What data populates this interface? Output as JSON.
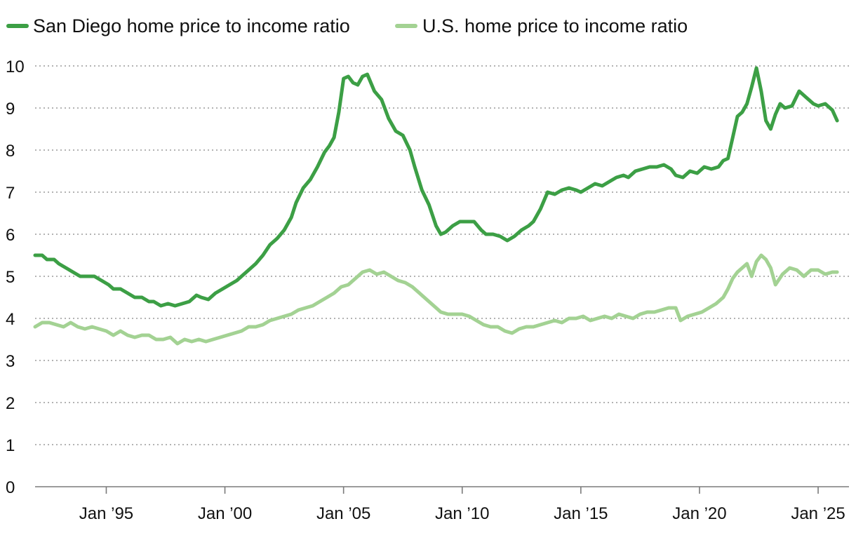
{
  "chart_data": {
    "type": "line",
    "title": "",
    "xlabel": "",
    "ylabel": "",
    "ylim": [
      0,
      10
    ],
    "xlim": [
      1992.0,
      2026.3
    ],
    "grid": true,
    "legend_position": "top-left",
    "y_ticks": [
      {
        "value": 0,
        "label": "0"
      },
      {
        "value": 1,
        "label": "1"
      },
      {
        "value": 2,
        "label": "2"
      },
      {
        "value": 3,
        "label": "3"
      },
      {
        "value": 4,
        "label": "4"
      },
      {
        "value": 5,
        "label": "5"
      },
      {
        "value": 6,
        "label": "6"
      },
      {
        "value": 7,
        "label": "7"
      },
      {
        "value": 8,
        "label": "8"
      },
      {
        "value": 9,
        "label": "9"
      },
      {
        "value": 10,
        "label": "10"
      }
    ],
    "x_ticks": [
      {
        "value": 1995,
        "label": "Jan ’95"
      },
      {
        "value": 2000,
        "label": "Jan ’00"
      },
      {
        "value": 2005,
        "label": "Jan ’05"
      },
      {
        "value": 2010,
        "label": "Jan ’10"
      },
      {
        "value": 2015,
        "label": "Jan ’15"
      },
      {
        "value": 2020,
        "label": "Jan ’20"
      },
      {
        "value": 2025,
        "label": "Jan ’25"
      }
    ],
    "series": [
      {
        "name": "San Diego home price to income ratio",
        "color": "#3c9f45",
        "x": [
          1992.0,
          1992.3,
          1992.5,
          1992.8,
          1993.0,
          1993.3,
          1993.6,
          1993.9,
          1994.2,
          1994.5,
          1994.8,
          1995.1,
          1995.3,
          1995.6,
          1995.9,
          1996.2,
          1996.5,
          1996.8,
          1997.0,
          1997.3,
          1997.6,
          1997.9,
          1998.2,
          1998.5,
          1998.8,
          1999.0,
          1999.3,
          1999.6,
          1999.9,
          2000.2,
          2000.5,
          2000.8,
          2001.0,
          2001.3,
          2001.6,
          2001.9,
          2002.2,
          2002.5,
          2002.8,
          2003.0,
          2003.3,
          2003.6,
          2003.9,
          2004.2,
          2004.4,
          2004.6,
          2004.8,
          2005.0,
          2005.2,
          2005.4,
          2005.6,
          2005.8,
          2006.0,
          2006.3,
          2006.6,
          2006.9,
          2007.2,
          2007.5,
          2007.8,
          2008.0,
          2008.3,
          2008.6,
          2008.9,
          2009.1,
          2009.3,
          2009.6,
          2009.9,
          2010.2,
          2010.5,
          2010.8,
          2011.0,
          2011.3,
          2011.6,
          2011.9,
          2012.2,
          2012.5,
          2012.8,
          2013.0,
          2013.3,
          2013.6,
          2013.9,
          2014.2,
          2014.5,
          2014.8,
          2015.0,
          2015.3,
          2015.6,
          2015.9,
          2016.2,
          2016.5,
          2016.8,
          2017.0,
          2017.3,
          2017.6,
          2017.9,
          2018.2,
          2018.5,
          2018.8,
          2019.0,
          2019.3,
          2019.6,
          2019.9,
          2020.2,
          2020.5,
          2020.8,
          2021.0,
          2021.2,
          2021.4,
          2021.6,
          2021.8,
          2022.0,
          2022.2,
          2022.4,
          2022.6,
          2022.8,
          2023.0,
          2023.2,
          2023.4,
          2023.6,
          2023.9,
          2024.2,
          2024.5,
          2024.8,
          2025.0,
          2025.3,
          2025.6,
          2025.8
        ],
        "values": [
          5.5,
          5.5,
          5.4,
          5.4,
          5.3,
          5.2,
          5.1,
          5.0,
          5.0,
          5.0,
          4.9,
          4.8,
          4.7,
          4.7,
          4.6,
          4.5,
          4.5,
          4.4,
          4.4,
          4.3,
          4.35,
          4.3,
          4.35,
          4.4,
          4.55,
          4.5,
          4.45,
          4.6,
          4.7,
          4.8,
          4.9,
          5.05,
          5.15,
          5.3,
          5.5,
          5.75,
          5.9,
          6.1,
          6.4,
          6.75,
          7.1,
          7.3,
          7.6,
          7.95,
          8.1,
          8.3,
          8.9,
          9.7,
          9.75,
          9.6,
          9.55,
          9.75,
          9.8,
          9.4,
          9.2,
          8.75,
          8.45,
          8.35,
          8.0,
          7.6,
          7.05,
          6.7,
          6.2,
          6.0,
          6.05,
          6.2,
          6.3,
          6.3,
          6.3,
          6.1,
          6.0,
          6.0,
          5.95,
          5.85,
          5.95,
          6.1,
          6.2,
          6.3,
          6.6,
          7.0,
          6.95,
          7.05,
          7.1,
          7.05,
          7.0,
          7.1,
          7.2,
          7.15,
          7.25,
          7.35,
          7.4,
          7.35,
          7.5,
          7.55,
          7.6,
          7.6,
          7.65,
          7.55,
          7.4,
          7.35,
          7.5,
          7.45,
          7.6,
          7.55,
          7.6,
          7.75,
          7.8,
          8.3,
          8.8,
          8.9,
          9.1,
          9.5,
          9.95,
          9.4,
          8.7,
          8.5,
          8.85,
          9.1,
          9.0,
          9.05,
          9.4,
          9.25,
          9.1,
          9.05,
          9.1,
          8.95,
          8.7
        ]
      },
      {
        "name": "U.S. home price to income ratio",
        "color": "#a3d293",
        "x": [
          1992.0,
          1992.3,
          1992.6,
          1992.9,
          1993.2,
          1993.5,
          1993.8,
          1994.1,
          1994.4,
          1994.7,
          1995.0,
          1995.3,
          1995.6,
          1995.9,
          1996.2,
          1996.5,
          1996.8,
          1997.1,
          1997.4,
          1997.7,
          1998.0,
          1998.3,
          1998.6,
          1998.9,
          1999.2,
          1999.5,
          1999.8,
          2000.1,
          2000.4,
          2000.7,
          2001.0,
          2001.3,
          2001.6,
          2001.9,
          2002.2,
          2002.5,
          2002.8,
          2003.1,
          2003.4,
          2003.7,
          2004.0,
          2004.3,
          2004.6,
          2004.9,
          2005.2,
          2005.5,
          2005.8,
          2006.1,
          2006.4,
          2006.7,
          2007.0,
          2007.3,
          2007.6,
          2007.9,
          2008.2,
          2008.5,
          2008.8,
          2009.1,
          2009.4,
          2009.7,
          2010.0,
          2010.3,
          2010.6,
          2010.9,
          2011.2,
          2011.5,
          2011.8,
          2012.1,
          2012.4,
          2012.7,
          2013.0,
          2013.3,
          2013.6,
          2013.9,
          2014.2,
          2014.5,
          2014.8,
          2015.1,
          2015.4,
          2015.7,
          2016.0,
          2016.3,
          2016.6,
          2016.9,
          2017.2,
          2017.5,
          2017.8,
          2018.1,
          2018.4,
          2018.7,
          2019.0,
          2019.2,
          2019.5,
          2019.8,
          2020.1,
          2020.4,
          2020.7,
          2021.0,
          2021.2,
          2021.4,
          2021.6,
          2021.8,
          2022.0,
          2022.2,
          2022.4,
          2022.6,
          2022.8,
          2023.0,
          2023.2,
          2023.5,
          2023.8,
          2024.1,
          2024.4,
          2024.7,
          2025.0,
          2025.3,
          2025.6,
          2025.8
        ],
        "values": [
          3.8,
          3.9,
          3.9,
          3.85,
          3.8,
          3.9,
          3.8,
          3.75,
          3.8,
          3.75,
          3.7,
          3.6,
          3.7,
          3.6,
          3.55,
          3.6,
          3.6,
          3.5,
          3.5,
          3.55,
          3.4,
          3.5,
          3.45,
          3.5,
          3.45,
          3.5,
          3.55,
          3.6,
          3.65,
          3.7,
          3.8,
          3.8,
          3.85,
          3.95,
          4.0,
          4.05,
          4.1,
          4.2,
          4.25,
          4.3,
          4.4,
          4.5,
          4.6,
          4.75,
          4.8,
          4.95,
          5.1,
          5.15,
          5.05,
          5.1,
          5.0,
          4.9,
          4.85,
          4.75,
          4.6,
          4.45,
          4.3,
          4.15,
          4.1,
          4.1,
          4.1,
          4.05,
          3.95,
          3.85,
          3.8,
          3.8,
          3.7,
          3.65,
          3.75,
          3.8,
          3.8,
          3.85,
          3.9,
          3.95,
          3.9,
          4.0,
          4.0,
          4.05,
          3.95,
          4.0,
          4.05,
          4.0,
          4.1,
          4.05,
          4.0,
          4.1,
          4.15,
          4.15,
          4.2,
          4.25,
          4.25,
          3.95,
          4.05,
          4.1,
          4.15,
          4.25,
          4.35,
          4.5,
          4.7,
          4.95,
          5.1,
          5.2,
          5.3,
          5.0,
          5.35,
          5.5,
          5.4,
          5.2,
          4.8,
          5.05,
          5.2,
          5.15,
          5.0,
          5.15,
          5.15,
          5.05,
          5.1,
          5.1
        ]
      }
    ]
  }
}
